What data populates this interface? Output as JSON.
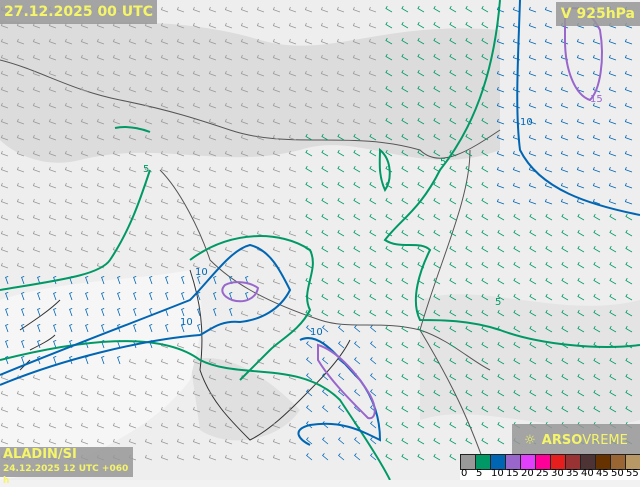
{
  "header": {
    "valid_time": "27.12.2025 00 UTC",
    "level": "V 925hPa"
  },
  "model": {
    "name": "ALADIN/SI",
    "run": "24.12.2025 12 UTC +060 h"
  },
  "brand": {
    "icon": "sun-icon",
    "name_bold": "ARSO",
    "name_light": "VREME"
  },
  "contours": {
    "levels": [
      "5",
      "10",
      "15"
    ],
    "colors": {
      "5": "#009966",
      "10": "#0066b3",
      "15": "#9966cc"
    }
  },
  "legend": {
    "unit_ticks": [
      "0",
      "5",
      "10",
      "15",
      "20",
      "25",
      "30",
      "35",
      "40",
      "45",
      "50",
      "55"
    ],
    "colors": [
      "#999999",
      "#009966",
      "#0066b3",
      "#9966cc",
      "#e040fb",
      "#ff0099",
      "#e61e1e",
      "#993333",
      "#4d3333",
      "#663300",
      "#996633",
      "#b89966"
    ]
  }
}
